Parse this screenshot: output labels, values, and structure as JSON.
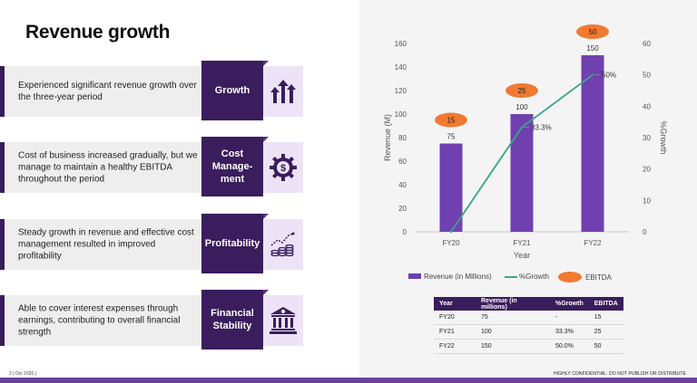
{
  "slide": {
    "title": "Revenue growth",
    "footer_page": "2",
    "footer_date": "Oct 2026",
    "footer_confidential": "HIGHLY CONFIDENTIAL: DO NOT PUBLISH OR DISTRIBUTE"
  },
  "rows": [
    {
      "text": "Experienced significant revenue growth over the three-year period",
      "label": "Growth",
      "icon": "growth-arrows-icon"
    },
    {
      "text": "Cost of business increased gradually, but we manage to maintain a healthy EBITDA throughout the period",
      "label": "Cost Manage-ment",
      "icon": "dollar-gear-icon"
    },
    {
      "text": "Steady growth in revenue and effective  cost management resulted in improved profitability",
      "label": "Profitability",
      "icon": "coins-chart-icon"
    },
    {
      "text": "Able to cover interest expenses through earnings, contributing to overall financial strength",
      "label": "Financial Stability",
      "icon": "bank-icon"
    }
  ],
  "chart_data": {
    "type": "bar",
    "categories": [
      "FY20",
      "FY21",
      "FY22"
    ],
    "series": [
      {
        "name": "Revenue (in Millions)",
        "kind": "bar",
        "axis": "left",
        "values": [
          75,
          100,
          150
        ],
        "labels": [
          "75",
          "100",
          "150"
        ],
        "color": "#7040b0"
      },
      {
        "name": "%Growth",
        "kind": "line",
        "axis": "right",
        "values": [
          0,
          33.3,
          50
        ],
        "labels": [
          "",
          "33.3%",
          "50%"
        ],
        "color": "#3aa58a"
      },
      {
        "name": "EBITDA",
        "kind": "marker",
        "values": [
          15,
          25,
          50
        ],
        "labels": [
          "15",
          "25",
          "50"
        ],
        "color": "#f07a30"
      }
    ],
    "xlabel": "Year",
    "ylabel": "Revenue (M)",
    "y2label": "%Growth",
    "ylim": [
      0,
      160
    ],
    "yticks": [
      "0",
      "20",
      "40",
      "60",
      "80",
      "100",
      "120",
      "140",
      "160"
    ],
    "y2lim": [
      0,
      60
    ],
    "y2ticks": [
      "0",
      "10",
      "20",
      "30",
      "40",
      "50",
      "60"
    ],
    "legend": [
      "Revenue (in Millions)",
      "%Growth",
      "EBITDA"
    ],
    "legend_position": "bottom"
  },
  "table": {
    "headers": [
      "Year",
      "Revenue (in millions)",
      "%Growth",
      "EBITDA"
    ],
    "rows": [
      [
        "FY20",
        "75",
        "-",
        "15"
      ],
      [
        "FY21",
        "100",
        "33.3%",
        "25"
      ],
      [
        "FY22",
        "150",
        "50.0%",
        "50"
      ]
    ]
  }
}
